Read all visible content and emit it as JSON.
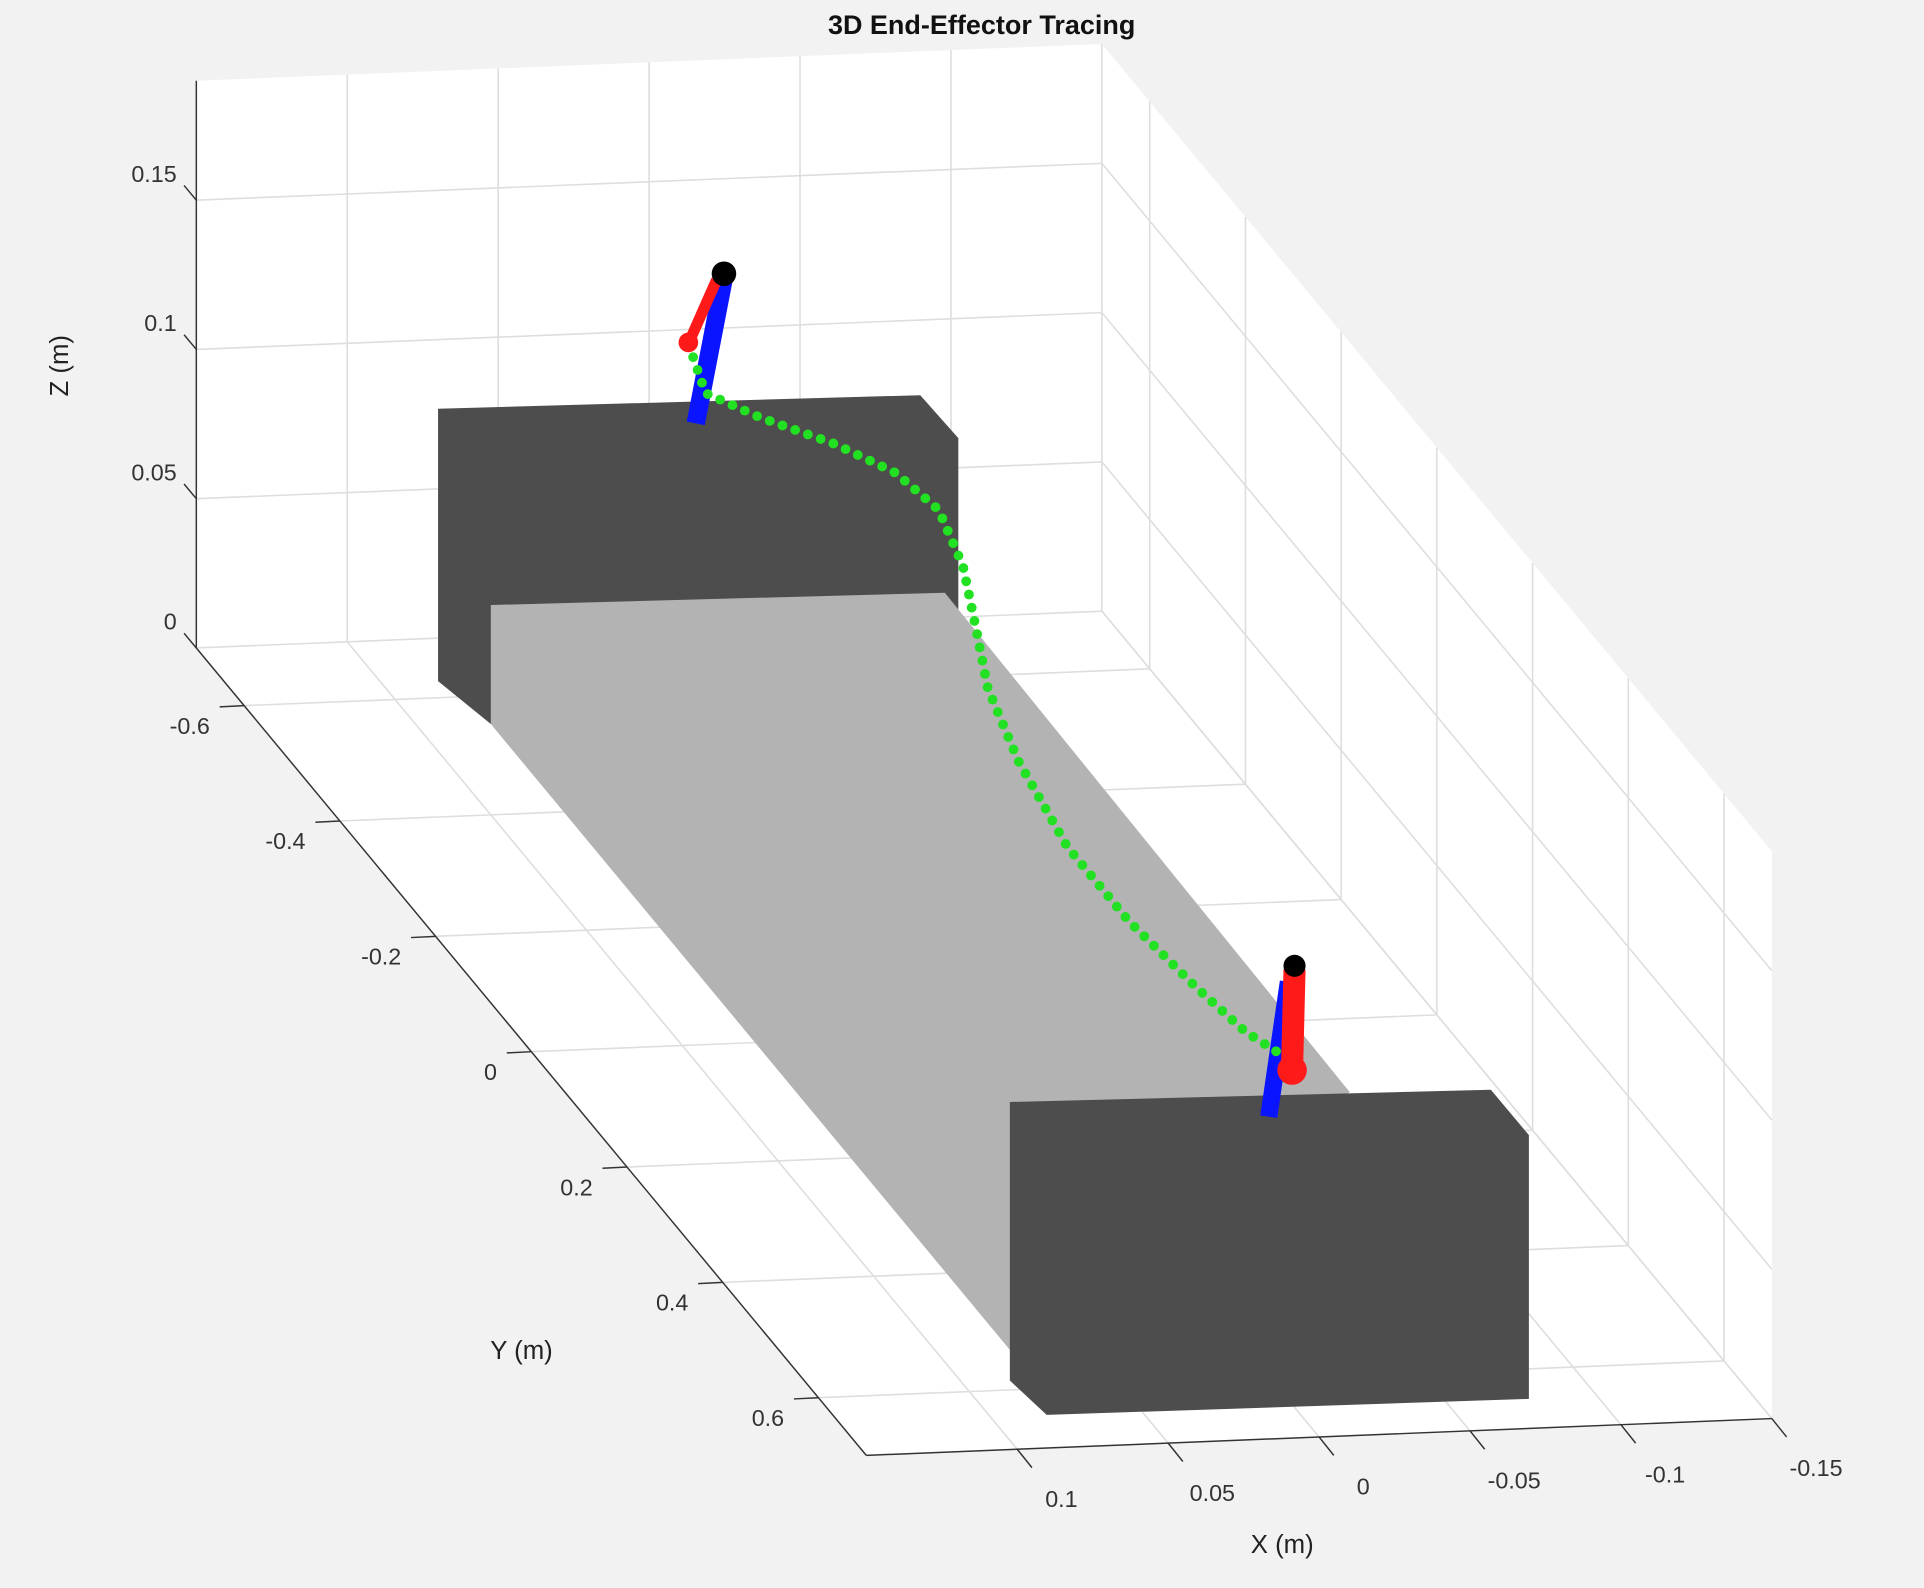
{
  "chart_data": {
    "type": "line3d",
    "title": "3D End-Effector Tracing",
    "xlabel": "X (m)",
    "ylabel": "Y (m)",
    "zlabel": "Z (m)",
    "xlim": [
      -0.15,
      0.15
    ],
    "ylim": [
      -0.7,
      0.7
    ],
    "zlim": [
      0,
      0.19
    ],
    "xticks": [
      -0.15,
      -0.1,
      -0.05,
      0,
      0.05,
      0.1
    ],
    "yticks": [
      -0.6,
      -0.4,
      -0.2,
      0,
      0.2,
      0.4,
      0.6
    ],
    "zticks": [
      0,
      0.05,
      0.1,
      0.15
    ],
    "grid": true,
    "series": [
      {
        "color": "#22e022",
        "x": [
          0,
          0,
          0,
          0,
          0,
          0,
          0,
          0,
          0,
          0,
          0,
          0,
          0,
          0,
          0
        ],
        "y": [
          -0.608,
          -0.582,
          -0.467,
          -0.313,
          -0.185,
          -0.095,
          -0.044,
          -0.018,
          0.008,
          0.072,
          0.174,
          0.303,
          0.444,
          0.546,
          0.623
        ],
        "z": [
          0.109,
          0.102,
          0.116,
          0.137,
          0.152,
          0.157,
          0.148,
          0.133,
          0.117,
          0.105,
          0.096,
          0.096,
          0.101,
          0.106,
          0.113
        ]
      }
    ]
  }
}
